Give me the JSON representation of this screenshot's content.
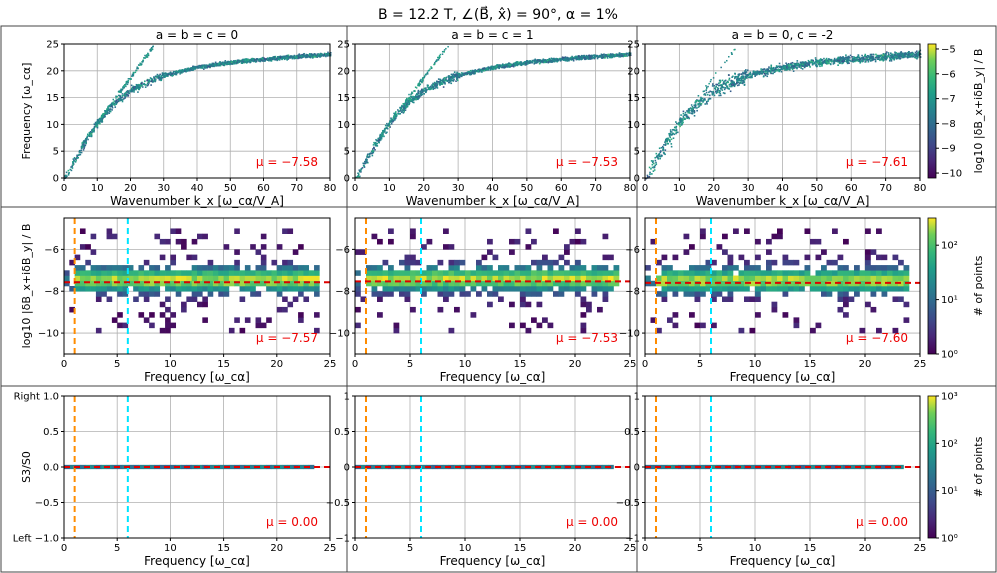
{
  "figure": {
    "title": "B = 12.2 T,  ∠(B⃗, x̂) = 90°,  α = 1%",
    "orange_line_freq": 1.0,
    "cyan_line_freq": 6.0,
    "colors": {
      "orange": "#ff8c00",
      "cyan": "#00e5ff",
      "mu_red": "#ee0000",
      "panel_bg": "#ffffff",
      "viridis_low": "#440154",
      "viridis_mid": "#21918c",
      "viridis_high": "#fde725"
    }
  },
  "chart_data": [
    {
      "id": "r0c0",
      "type": "heatmap",
      "title": "a = b = c = 0",
      "xlabel": "Wavenumber k_x [ω_cα/V_A]",
      "ylabel": "Frequency [ω_cα]",
      "xlim": [
        0,
        80
      ],
      "ylim": [
        0,
        25
      ],
      "xticks": [
        0,
        10,
        20,
        30,
        40,
        50,
        60,
        70,
        80
      ],
      "yticks": [
        0,
        5,
        10,
        15,
        20,
        25
      ],
      "mu": "μ = −7.58",
      "mu_value": -7.58,
      "spread": 0.55,
      "branch_strength": 0.6,
      "curve_k": [
        0,
        5,
        10,
        15,
        20,
        25,
        30,
        40,
        50,
        60,
        70,
        80
      ],
      "curve_f": [
        0,
        5.5,
        10.5,
        14,
        16.5,
        18,
        19.3,
        20.8,
        21.7,
        22.3,
        22.8,
        23.2
      ]
    },
    {
      "id": "r0c1",
      "type": "heatmap",
      "title": "a = b = c = 1",
      "xlabel": "Wavenumber k_x [ω_cα/V_A]",
      "ylabel": "",
      "xlim": [
        0,
        80
      ],
      "ylim": [
        0,
        25
      ],
      "xticks": [
        0,
        10,
        20,
        30,
        40,
        50,
        60,
        70,
        80
      ],
      "yticks": [
        0,
        5,
        10,
        15,
        20,
        25
      ],
      "mu": "μ = −7.53",
      "mu_value": -7.53,
      "spread": 0.6,
      "branch_strength": 0.5,
      "curve_k": [
        0,
        5,
        10,
        15,
        20,
        25,
        30,
        40,
        50,
        60,
        70,
        80
      ],
      "curve_f": [
        0,
        5.5,
        10.5,
        14,
        16.5,
        18,
        19.3,
        20.8,
        21.7,
        22.3,
        22.8,
        23.2
      ]
    },
    {
      "id": "r0c2",
      "type": "heatmap",
      "title": "a = b = 0, c = -2",
      "xlabel": "Wavenumber k_x [ω_cα/V_A]",
      "ylabel": "",
      "xlim": [
        0,
        80
      ],
      "ylim": [
        0,
        25
      ],
      "xticks": [
        0,
        10,
        20,
        30,
        40,
        50,
        60,
        70,
        80
      ],
      "yticks": [
        0,
        5,
        10,
        15,
        20,
        25
      ],
      "mu": "μ = −7.61",
      "mu_value": -7.61,
      "spread": 1.1,
      "branch_strength": 0.15,
      "curve_k": [
        0,
        5,
        10,
        15,
        20,
        25,
        30,
        40,
        50,
        60,
        70,
        80
      ],
      "curve_f": [
        0,
        5.5,
        10.5,
        14,
        16.5,
        18,
        19.3,
        20.8,
        21.7,
        22.3,
        22.8,
        23.2
      ]
    },
    {
      "id": "r1c0",
      "type": "heatmap",
      "title": "",
      "xlabel": "Frequency [ω_cα]",
      "ylabel": "log10 |δB_x+iδB_y| / B",
      "xlim": [
        0,
        25
      ],
      "ylim": [
        -11,
        -4.5
      ],
      "xticks": [
        0,
        5,
        10,
        15,
        20,
        25
      ],
      "yticks": [
        -10,
        -8,
        -6
      ],
      "mu": "μ = −7.57",
      "mu_value": -7.57
    },
    {
      "id": "r1c1",
      "type": "heatmap",
      "title": "",
      "xlabel": "Frequency [ω_cα]",
      "ylabel": "",
      "xlim": [
        0,
        25
      ],
      "ylim": [
        -11,
        -4.5
      ],
      "xticks": [
        0,
        5,
        10,
        15,
        20,
        25
      ],
      "yticks": [
        -10,
        -8,
        -6
      ],
      "mu": "μ = −7.53",
      "mu_value": -7.53
    },
    {
      "id": "r1c2",
      "type": "heatmap",
      "title": "",
      "xlabel": "Frequency [ω_cα]",
      "ylabel": "",
      "xlim": [
        0,
        25
      ],
      "ylim": [
        -11,
        -4.5
      ],
      "xticks": [
        0,
        5,
        10,
        15,
        20,
        25
      ],
      "yticks": [
        -10,
        -8,
        -6
      ],
      "mu": "μ = −7.60",
      "mu_value": -7.6
    },
    {
      "id": "r2c0",
      "type": "heatmap",
      "title": "",
      "xlabel": "Frequency [ω_cα]",
      "ylabel": "S3/S0",
      "xlim": [
        0,
        25
      ],
      "ylim": [
        -1,
        1
      ],
      "xticks": [
        0,
        5,
        10,
        15,
        20,
        25
      ],
      "yticks": [
        -1.0,
        -0.5,
        0.0,
        0.5,
        1.0
      ],
      "ytick_labels": [
        "Left −1.0",
        "−0.5",
        "0.0",
        "0.5",
        "Right 1.0"
      ],
      "mu": "μ = 0.00",
      "mu_value": 0.0
    },
    {
      "id": "r2c1",
      "type": "heatmap",
      "title": "",
      "xlabel": "Frequency [ω_cα]",
      "ylabel": "",
      "xlim": [
        0,
        25
      ],
      "ylim": [
        -1,
        1
      ],
      "xticks": [
        0,
        5,
        10,
        15,
        20,
        25
      ],
      "yticks": [
        -1.0,
        -0.5,
        0.0,
        0.5,
        1.0
      ],
      "mu": "μ = 0.00",
      "mu_value": 0.0
    },
    {
      "id": "r2c2",
      "type": "heatmap",
      "title": "",
      "xlabel": "Frequency [ω_cα]",
      "ylabel": "",
      "xlim": [
        0,
        25
      ],
      "ylim": [
        -1,
        1
      ],
      "xticks": [
        0,
        5,
        10,
        15,
        20,
        25
      ],
      "yticks": [
        -1.0,
        -0.5,
        0.0,
        0.5,
        1.0
      ],
      "mu": "μ = 0.00",
      "mu_value": 0.0
    }
  ],
  "colorbars": [
    {
      "id": "cb0",
      "label": "log10 |δB_x+iδB_y| / B",
      "ticks": [
        "−5",
        "−6",
        "−7",
        "−8",
        "−9",
        "−10"
      ],
      "tick_values": [
        -5,
        -6,
        -7,
        -8,
        -9,
        -10
      ],
      "range": [
        -10.2,
        -4.8
      ],
      "scale": "linear"
    },
    {
      "id": "cb1",
      "label": "# of points",
      "ticks": [
        "10²",
        "10¹",
        "10⁰"
      ],
      "tick_values": [
        2,
        1,
        0
      ],
      "range": [
        0,
        2.5
      ],
      "scale": "log"
    },
    {
      "id": "cb2",
      "label": "# of points",
      "ticks": [
        "10³",
        "10²",
        "10¹",
        "10⁰"
      ],
      "tick_values": [
        3,
        2,
        1,
        0
      ],
      "range": [
        0,
        3
      ],
      "scale": "log"
    }
  ]
}
